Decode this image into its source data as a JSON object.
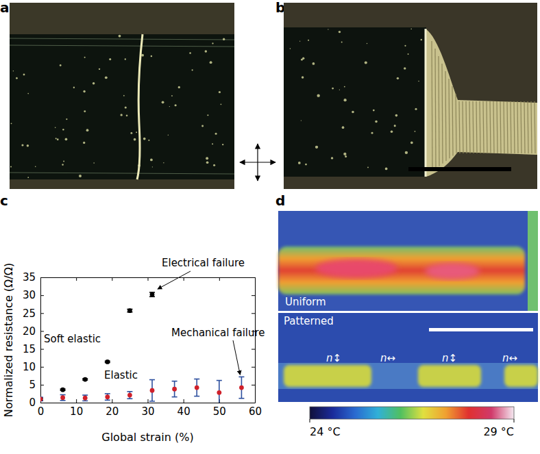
{
  "chart_data": {
    "type": "scatter",
    "x_label": "Global strain (%)",
    "y_label": "Normalized resistance (Ω/Ω)",
    "xlim": [
      0,
      60
    ],
    "xticks": [
      0,
      10,
      20,
      30,
      40,
      50,
      60
    ],
    "ylim": [
      0,
      35
    ],
    "yticks": [
      0,
      5,
      10,
      15,
      20,
      25,
      30,
      35
    ],
    "grid": false,
    "series": [
      {
        "color": "#000000",
        "marker": "circle",
        "x": [
          0,
          6.25,
          12.5,
          18.75,
          25,
          31.25
        ],
        "values": [
          1.0,
          3.6,
          6.5,
          11.4,
          25.7,
          30.2
        ],
        "errors": [
          0.3,
          0.2,
          0.2,
          0.2,
          0.4,
          0.6
        ]
      },
      {
        "color": "#d0202a",
        "marker": "circle",
        "x": [
          0,
          6.25,
          12.5,
          18.75,
          25,
          31.25,
          37.5,
          43.75,
          50,
          56.25
        ],
        "values": [
          1.0,
          1.4,
          1.3,
          1.6,
          2.1,
          3.4,
          3.8,
          4.2,
          2.8,
          4.2
        ],
        "errors": [
          0.5,
          0.8,
          0.8,
          0.9,
          1.0,
          3.0,
          2.2,
          2.4,
          3.4,
          3.0
        ]
      }
    ],
    "annotations": [
      {
        "text": "Electrical failure"
      },
      {
        "text": "Soft elastic"
      },
      {
        "text": "Elastic"
      },
      {
        "text": "Mechanical failure"
      }
    ]
  },
  "panels": {
    "a": {
      "label": "a"
    },
    "b": {
      "label": "b"
    },
    "c": {
      "label": "c"
    },
    "d": {
      "label": "d",
      "uniform": "Uniform",
      "patterned": "Patterned",
      "marks": [
        "n↕",
        "n↔",
        "n↕",
        "n↔"
      ],
      "colorbar": {
        "range": [
          24,
          29
        ],
        "ticks": [
          {
            "value": 24,
            "label": "24 °C"
          },
          {
            "value": 29,
            "label": "29 °C"
          }
        ]
      }
    }
  }
}
